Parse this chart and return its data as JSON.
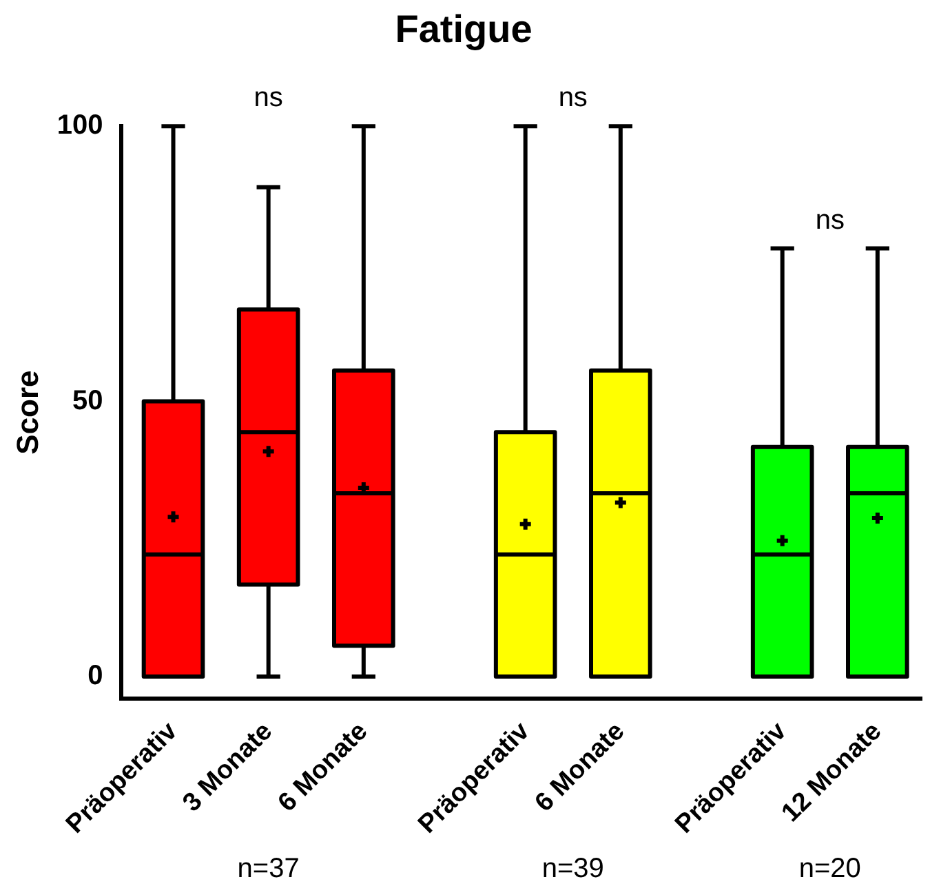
{
  "chart_data": {
    "type": "box",
    "title": "Fatigue",
    "ylabel": "Score",
    "categories": [
      "Präoperativ",
      "3 Monate",
      "6 Monate",
      "Präoperativ",
      "6 Monate",
      "Präoperativ",
      "12 Monate"
    ],
    "colors": [
      "#ff0000",
      "#ff0000",
      "#ff0000",
      "#ffff00",
      "#ffff00",
      "#00ff00",
      "#00ff00"
    ],
    "boxes": [
      {
        "low": 0,
        "q1": 0,
        "median": 22.2,
        "q3": 50,
        "high": 100,
        "mean": 29
      },
      {
        "low": 0,
        "q1": 16.7,
        "median": 44.4,
        "q3": 66.7,
        "high": 88.9,
        "mean": 40.9
      },
      {
        "low": 0,
        "q1": 5.6,
        "median": 33.3,
        "q3": 55.6,
        "high": 100,
        "mean": 34.3
      },
      {
        "low": 0,
        "q1": 0,
        "median": 22.2,
        "q3": 44.4,
        "high": 100,
        "mean": 27.7
      },
      {
        "low": 0,
        "q1": 0,
        "median": 33.3,
        "q3": 55.6,
        "high": 100,
        "mean": 31.6
      },
      {
        "low": 0,
        "q1": 0,
        "median": 22.2,
        "q3": 41.7,
        "high": 77.8,
        "mean": 24.7
      },
      {
        "low": 0,
        "q1": 0,
        "median": 33.3,
        "q3": 41.7,
        "high": 77.8,
        "mean": 28.8
      }
    ],
    "ylim": [
      -4,
      100
    ],
    "yticks": [
      0,
      50,
      100
    ],
    "grid": false,
    "legend": false,
    "marker": "cross",
    "annotations": [
      "ns",
      "ns",
      "ns",
      "n=37",
      "n=39",
      "n=20"
    ]
  }
}
